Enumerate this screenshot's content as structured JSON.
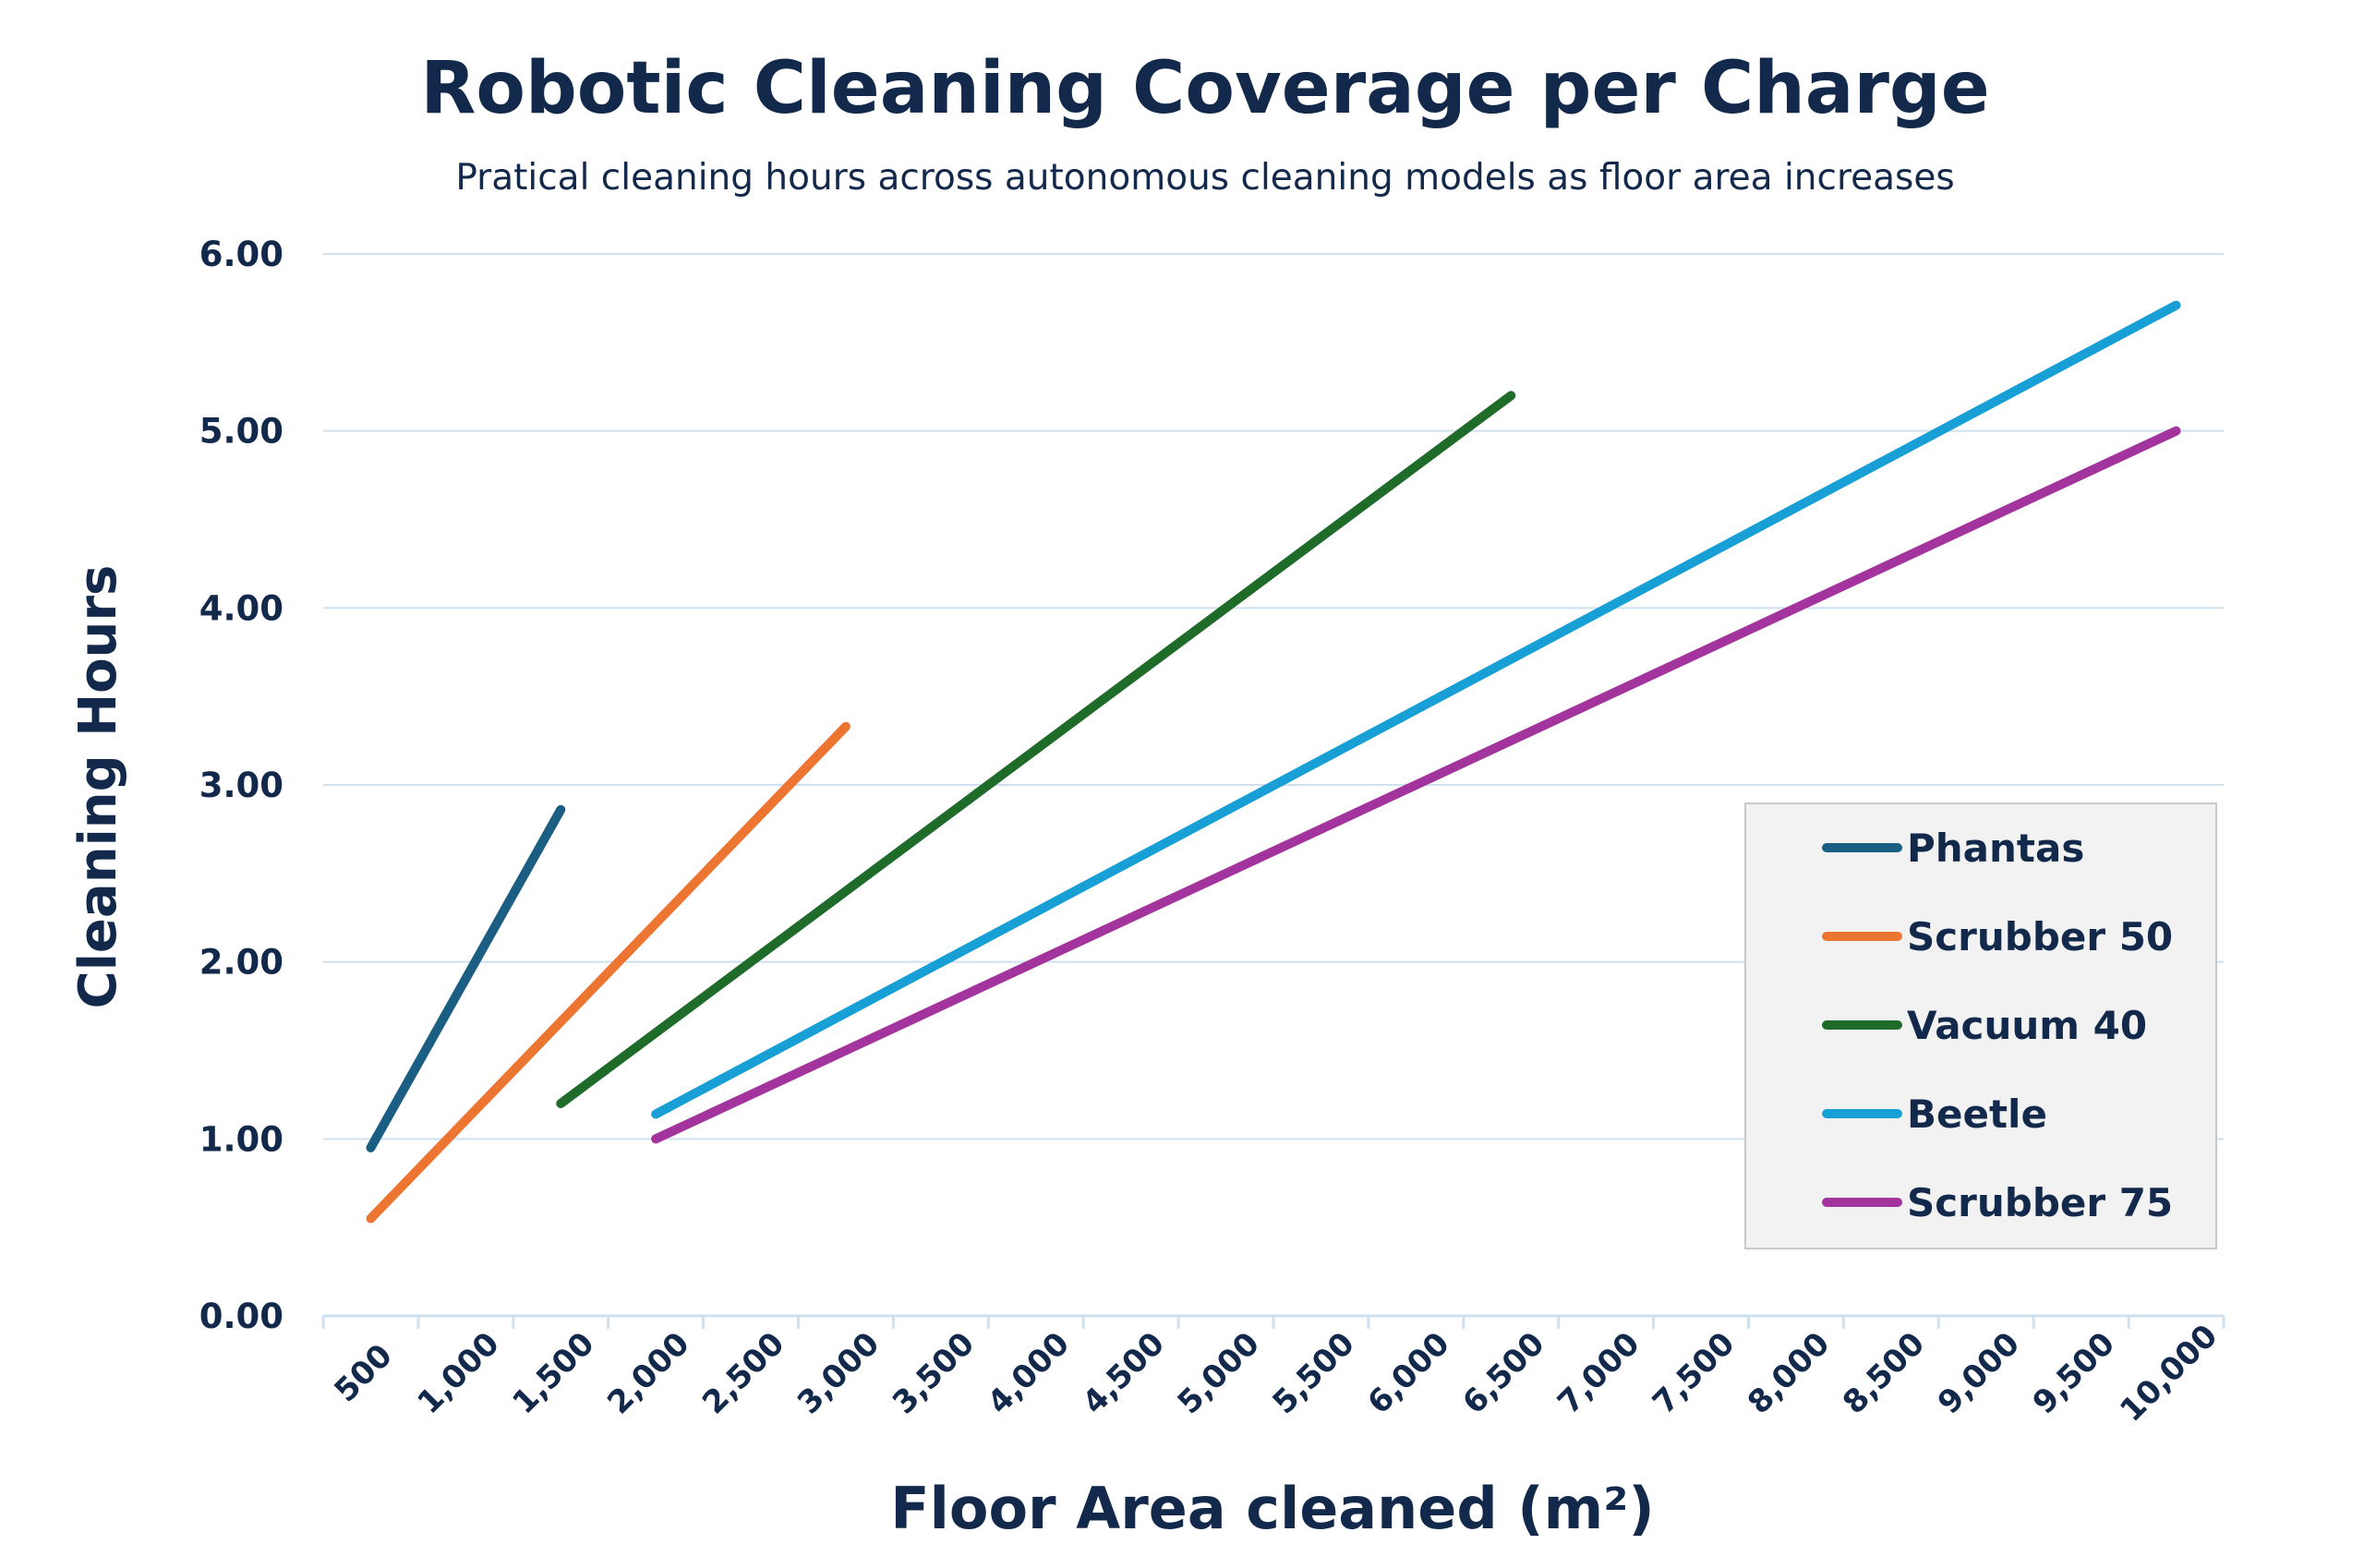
{
  "chart_data": {
    "type": "line",
    "title": "Robotic Cleaning Coverage per Charge",
    "subtitle": "Pratical cleaning hours across autonomous cleaning models as floor area increases",
    "xlabel": "Floor Area cleaned (m²)",
    "ylabel": "Cleaning Hours",
    "xlim": [
      250,
      10250
    ],
    "ylim": [
      0,
      6
    ],
    "x_ticks": [
      "500",
      "1,000",
      "1,500",
      "2,000",
      "2,500",
      "3,000",
      "3,500",
      "4,000",
      "4,500",
      "5,000",
      "5,500",
      "6,000",
      "6,500",
      "7,000",
      "7,500",
      "8,000",
      "8,500",
      "9,000",
      "9,500",
      "10,000"
    ],
    "y_ticks": [
      "0.00",
      "1.00",
      "2.00",
      "3.00",
      "4.00",
      "5.00",
      "6.00"
    ],
    "grid": "horizontal",
    "legend_position": "bottom-right",
    "series": [
      {
        "name": "Phantas",
        "color": "#1b5e83",
        "x": [
          500,
          1500
        ],
        "y": [
          0.95,
          2.86
        ]
      },
      {
        "name": "Scrubber 50",
        "color": "#ec7532",
        "x": [
          500,
          3000
        ],
        "y": [
          0.55,
          3.33
        ]
      },
      {
        "name": "Vacuum 40",
        "color": "#1f6b2a",
        "x": [
          1500,
          6500
        ],
        "y": [
          1.2,
          5.2
        ]
      },
      {
        "name": "Beetle",
        "color": "#18a0d6",
        "x": [
          2000,
          10000
        ],
        "y": [
          1.14,
          5.71
        ]
      },
      {
        "name": "Scrubber 75",
        "color": "#a3339d",
        "x": [
          2000,
          10000
        ],
        "y": [
          1.0,
          5.0
        ]
      }
    ]
  }
}
